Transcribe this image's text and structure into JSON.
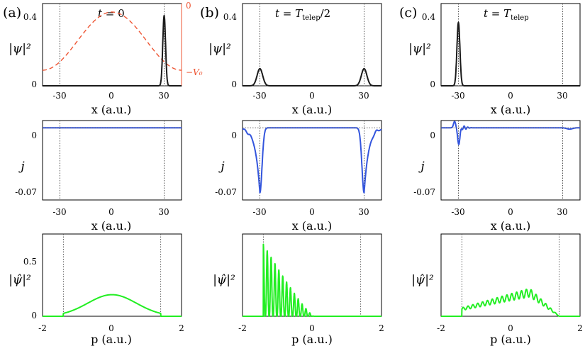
{
  "panel_labels": [
    "(a)",
    "(b)",
    "(c)"
  ],
  "titles": [
    {
      "lhs": "t",
      "eq": " = ",
      "rhs": "0",
      "sub": ""
    },
    {
      "lhs": "t",
      "eq": " = ",
      "rhs": "T",
      "sub": "telep",
      "suffix": "/2"
    },
    {
      "lhs": "t",
      "eq": " = ",
      "rhs": "T",
      "sub": "telep",
      "suffix": ""
    }
  ],
  "axis_labels": {
    "x": "x (a.u.)",
    "p": "p (a.u.)",
    "density": "|ψ|²",
    "current": "j",
    "momentum": "|ψ̂|²"
  },
  "potential_labels": {
    "top": "0",
    "bottom": "−V₀"
  },
  "colors": {
    "density": "#1a1a1a",
    "current": "#3355dd",
    "momentum": "#22ee22",
    "potential": "#ee5533",
    "marker": "#555555"
  },
  "chart_data": [
    {
      "type": "line",
      "panel": "a",
      "row": "density",
      "title": "t = 0",
      "xlabel": "x (a.u.)",
      "ylabel": "|ψ|²",
      "xlim": [
        -40,
        40
      ],
      "ylim": [
        0,
        0.48
      ],
      "xticks": [
        -30,
        0,
        30
      ],
      "yticks": [
        0,
        0.4
      ],
      "markers": [
        -30,
        30
      ],
      "series": [
        {
          "name": "density",
          "gaussians": [
            {
              "center": 30,
              "amplitude": 0.41,
              "width": 0.8
            }
          ]
        },
        {
          "name": "potential V(x)",
          "shape": "cosine well",
          "secondary_axis": [
            "−V₀",
            "0"
          ],
          "depth_fraction": 0.62
        }
      ]
    },
    {
      "type": "line",
      "panel": "a",
      "row": "current",
      "xlabel": "x (a.u.)",
      "ylabel": "j",
      "xlim": [
        -40,
        40
      ],
      "ylim": [
        -0.08,
        0.008
      ],
      "xticks": [
        -30,
        0,
        30
      ],
      "yticks": [
        0,
        -0.07
      ],
      "markers": [
        -30,
        30
      ],
      "series": [
        {
          "name": "current",
          "values": "flat at 0"
        }
      ]
    },
    {
      "type": "line",
      "panel": "a",
      "row": "momentum",
      "xlabel": "p (a.u.)",
      "ylabel": "|ψ̂|²",
      "xlim": [
        -2,
        2
      ],
      "ylim": [
        0,
        0.8
      ],
      "xticks": [
        -2,
        0,
        2
      ],
      "yticks": [
        0,
        0.5
      ],
      "markers": [
        -1.4,
        1.4
      ],
      "series": [
        {
          "name": "momentum density",
          "gaussian": {
            "center": 0,
            "amplitude": 0.21,
            "width": 0.7
          },
          "support": [
            -1.4,
            1.4
          ]
        }
      ]
    },
    {
      "type": "line",
      "panel": "b",
      "row": "density",
      "title": "t = T_telep/2",
      "xlabel": "x (a.u.)",
      "ylabel": "|ψ|²",
      "xlim": [
        -40,
        40
      ],
      "ylim": [
        0,
        0.48
      ],
      "xticks": [
        -30,
        0,
        30
      ],
      "yticks": [
        0,
        0.4
      ],
      "markers": [
        -30,
        30
      ],
      "series": [
        {
          "name": "density",
          "gaussians": [
            {
              "center": -30,
              "amplitude": 0.1,
              "width": 1.6
            },
            {
              "center": 30,
              "amplitude": 0.1,
              "width": 1.6
            }
          ]
        }
      ]
    },
    {
      "type": "line",
      "panel": "b",
      "row": "current",
      "xlabel": "x (a.u.)",
      "ylabel": "j",
      "xlim": [
        -40,
        40
      ],
      "ylim": [
        -0.08,
        0.008
      ],
      "xticks": [
        -30,
        0,
        30
      ],
      "yticks": [
        0,
        -0.07
      ],
      "markers": [
        -30,
        30
      ],
      "series": [
        {
          "name": "current",
          "minima": [
            {
              "x": -30,
              "value": -0.072
            },
            {
              "x": 30,
              "value": -0.072
            }
          ]
        }
      ]
    },
    {
      "type": "line",
      "panel": "b",
      "row": "momentum",
      "xlabel": "p (a.u.)",
      "ylabel": "|ψ̂|²",
      "xlim": [
        -2,
        2
      ],
      "ylim": [
        0,
        0.8
      ],
      "xticks": [
        -2,
        0,
        2
      ],
      "markers": [
        -1.4,
        1.4
      ],
      "series": [
        {
          "name": "momentum density",
          "envelope_peak": 0.7,
          "start": -1.4,
          "end": 0.05,
          "fringes": 13
        }
      ]
    },
    {
      "type": "line",
      "panel": "c",
      "row": "density",
      "title": "t = T_telep",
      "xlabel": "x (a.u.)",
      "ylabel": "|ψ|²",
      "xlim": [
        -40,
        40
      ],
      "ylim": [
        0,
        0.48
      ],
      "xticks": [
        -30,
        0,
        30
      ],
      "yticks": [
        0,
        0.4
      ],
      "markers": [
        -30,
        30
      ],
      "series": [
        {
          "name": "density",
          "gaussians": [
            {
              "center": -30,
              "amplitude": 0.37,
              "width": 0.85
            }
          ]
        }
      ]
    },
    {
      "type": "line",
      "panel": "c",
      "row": "current",
      "xlabel": "x (a.u.)",
      "ylabel": "j",
      "xlim": [
        -40,
        40
      ],
      "ylim": [
        -0.08,
        0.008
      ],
      "xticks": [
        -30,
        0,
        30
      ],
      "yticks": [
        0,
        -0.07
      ],
      "markers": [
        -30,
        30
      ],
      "series": [
        {
          "name": "current",
          "dipole_at": -31,
          "peak": 0.007,
          "trough": -0.018
        }
      ]
    },
    {
      "type": "line",
      "panel": "c",
      "row": "momentum",
      "xlabel": "p (a.u.)",
      "ylabel": "|ψ̂|²",
      "xlim": [
        -2,
        2
      ],
      "ylim": [
        0,
        0.8
      ],
      "xticks": [
        -2,
        0,
        2
      ],
      "markers": [
        -1.4,
        1.4
      ],
      "series": [
        {
          "name": "momentum density",
          "start": -1.4,
          "end": 1.4,
          "rise_from": 0.07,
          "peak_at": 0.55,
          "peak": 0.23,
          "ripples": 20
        }
      ]
    }
  ]
}
